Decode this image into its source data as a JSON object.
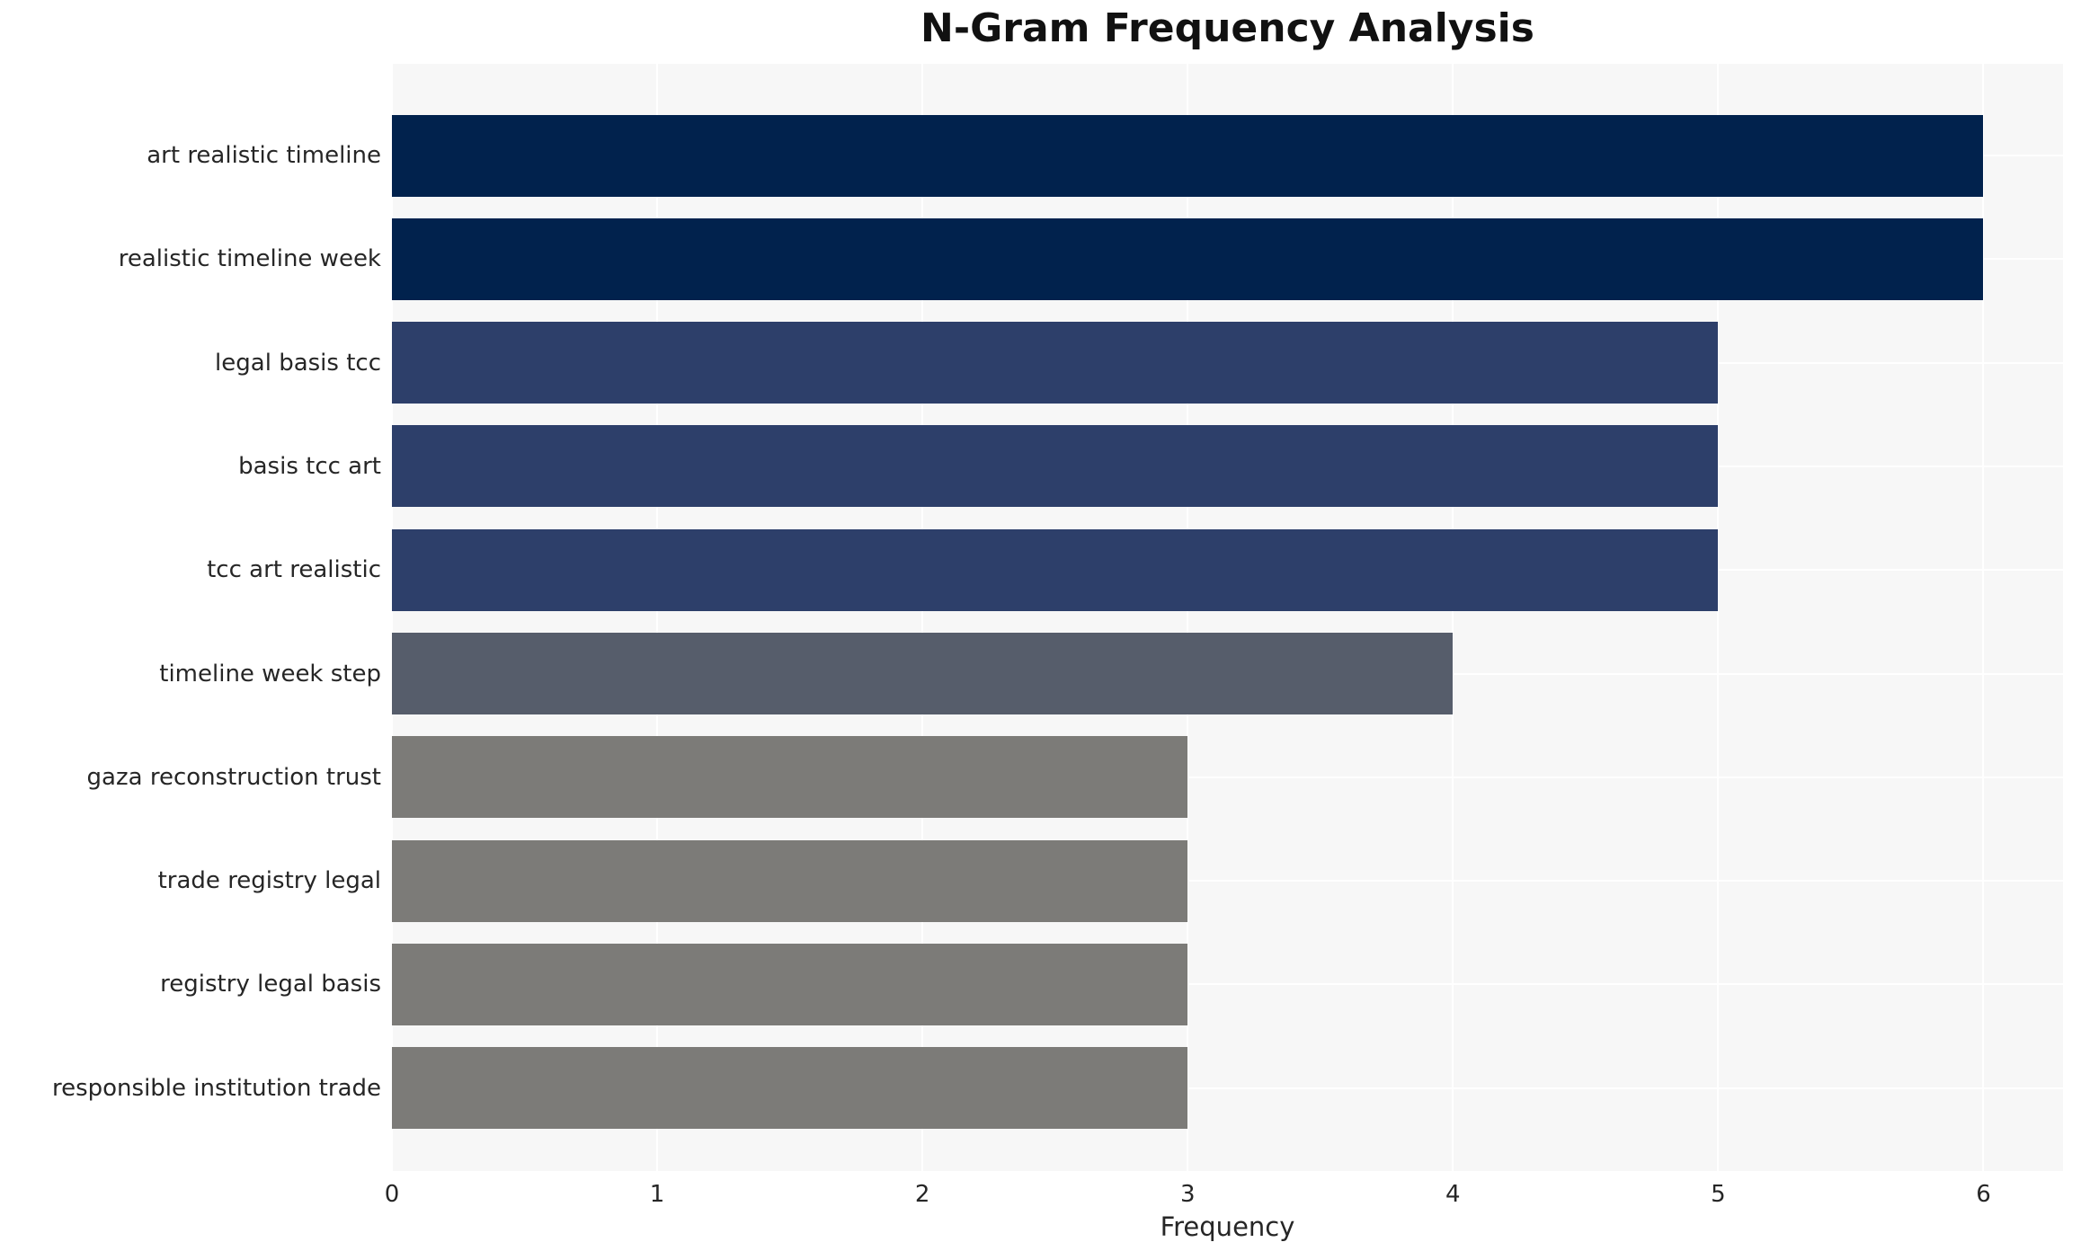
{
  "chart_data": {
    "type": "bar",
    "orientation": "horizontal",
    "title": "N-Gram Frequency Analysis",
    "xlabel": "Frequency",
    "ylabel": "",
    "categories": [
      "art realistic timeline",
      "realistic timeline week",
      "legal basis tcc",
      "basis tcc art",
      "tcc art realistic",
      "timeline week step",
      "gaza reconstruction trust",
      "trade registry legal",
      "registry legal basis",
      "responsible institution trade"
    ],
    "values": [
      6,
      6,
      5,
      5,
      5,
      4,
      3,
      3,
      3,
      3
    ],
    "xlim": [
      0,
      6.3
    ],
    "xticks": [
      "0",
      "1",
      "2",
      "3",
      "4",
      "5",
      "6"
    ],
    "grid": true,
    "legend_position": "none",
    "bar_colors": [
      "#01224d",
      "#01224d",
      "#2d3f6a",
      "#2d3f6a",
      "#2d3f6a",
      "#565d6b",
      "#7c7b78",
      "#7c7b78",
      "#7c7b78",
      "#7c7b78"
    ],
    "colors": {
      "plot_background": "#f7f7f7",
      "figure_background": "#ffffff",
      "grid": "#ffffff",
      "text": "#262626",
      "title": "#111111"
    }
  }
}
